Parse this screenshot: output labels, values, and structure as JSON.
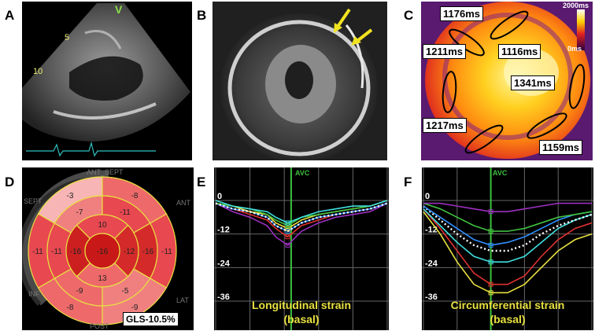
{
  "panels": {
    "a": {
      "letter": "A",
      "scale_marks": [
        "5",
        "10"
      ],
      "marker": "V"
    },
    "b": {
      "letter": "B"
    },
    "c": {
      "letter": "C",
      "colorbar_max": "2000ms",
      "colorbar_min": "0ms",
      "t1_values": [
        "1176ms",
        "1211ms",
        "1116ms",
        "1341ms",
        "1217ms",
        "1159ms"
      ]
    },
    "d": {
      "letter": "D",
      "walls": [
        "ANT_SEPT",
        "SEPT",
        "ANT",
        "INF",
        "LAT",
        "POST"
      ],
      "gls": "GLS-10.5%",
      "segments": [
        {
          "v": "-11"
        },
        {
          "v": "-9"
        },
        {
          "v": "-8"
        },
        {
          "v": "-11"
        },
        {
          "v": "-3"
        },
        {
          "v": "-8"
        },
        {
          "v": "-16"
        },
        {
          "v": "-5"
        },
        {
          "v": "-9"
        },
        {
          "v": "-11"
        },
        {
          "v": "-7"
        },
        {
          "v": "-11"
        },
        {
          "v": "-12"
        },
        {
          "v": "13"
        },
        {
          "v": "-16"
        },
        {
          "v": "10"
        },
        {
          "v": "-16"
        }
      ]
    },
    "e": {
      "letter": "E",
      "caption_1": "Longitudinal strain",
      "caption_2": "(basal)"
    },
    "f": {
      "letter": "F",
      "caption_1": "Circumferential strain",
      "caption_2": "(basal)"
    }
  },
  "strain_axis": {
    "ticks": [
      "0",
      "-12",
      "-24",
      "-36"
    ],
    "marker": "AVC"
  },
  "chart_data": [
    {
      "type": "line",
      "title": "Longitudinal strain (basal)",
      "ylim": [
        -40,
        2
      ],
      "x": [
        0,
        0.1,
        0.2,
        0.3,
        0.35,
        0.42,
        0.5,
        0.6,
        0.7,
        0.8,
        0.9,
        1
      ],
      "series": [
        {
          "color": "#9b30c0",
          "values": [
            -1,
            -4,
            -6,
            -9,
            -13,
            -16,
            -11,
            -8,
            -6,
            -5,
            -4,
            -1
          ]
        },
        {
          "color": "#e03030",
          "values": [
            -1,
            -3,
            -5,
            -7,
            -10,
            -13,
            -9,
            -7,
            -5,
            -4,
            -3,
            -1
          ]
        },
        {
          "color": "#3090ff",
          "values": [
            -1,
            -3,
            -4,
            -6,
            -9,
            -11,
            -8,
            -6,
            -5,
            -4,
            -3,
            -1
          ]
        },
        {
          "color": "#e8e040",
          "values": [
            -1,
            -2,
            -4,
            -5,
            -8,
            -10,
            -7,
            -5,
            -4,
            -3,
            -2,
            0
          ]
        },
        {
          "color": "#40c040",
          "values": [
            -1,
            -2,
            -3,
            -5,
            -7,
            -9,
            -6,
            -5,
            -4,
            -3,
            -2,
            0
          ]
        },
        {
          "color": "#40e0e0",
          "values": [
            0,
            -2,
            -3,
            -4,
            -6,
            -8,
            -6,
            -4,
            -3,
            -2,
            -2,
            0
          ]
        },
        {
          "color": "#ffffff",
          "values": [
            -1,
            -3,
            -4,
            -6,
            -9,
            -11,
            -8,
            -6,
            -5,
            -4,
            -3,
            -1
          ]
        }
      ]
    },
    {
      "type": "line",
      "title": "Circumferential strain (basal)",
      "ylim": [
        -40,
        2
      ],
      "x": [
        0,
        0.1,
        0.2,
        0.3,
        0.4,
        0.5,
        0.6,
        0.7,
        0.8,
        0.9,
        1
      ],
      "series": [
        {
          "color": "#e8e040",
          "values": [
            -4,
            -12,
            -22,
            -30,
            -33,
            -33,
            -30,
            -24,
            -18,
            -14,
            -12
          ]
        },
        {
          "color": "#e03030",
          "values": [
            -3,
            -10,
            -18,
            -26,
            -30,
            -30,
            -27,
            -20,
            -14,
            -10,
            -8
          ]
        },
        {
          "color": "#40e0e0",
          "values": [
            -3,
            -9,
            -15,
            -20,
            -22,
            -22,
            -20,
            -15,
            -10,
            -7,
            -5
          ]
        },
        {
          "color": "#ffffff",
          "values": [
            -2,
            -7,
            -12,
            -16,
            -18,
            -18,
            -16,
            -12,
            -9,
            -7,
            -5
          ]
        },
        {
          "color": "#3090ff",
          "values": [
            -2,
            -6,
            -10,
            -14,
            -16,
            -15,
            -13,
            -10,
            -7,
            -5,
            -4
          ]
        },
        {
          "color": "#40c040",
          "values": [
            -1,
            -3,
            -6,
            -9,
            -11,
            -11,
            -10,
            -8,
            -6,
            -5,
            -4
          ]
        },
        {
          "color": "#9b30c0",
          "values": [
            -1,
            -1,
            -2,
            -3,
            -4,
            -4,
            -3,
            -2,
            -1,
            -1,
            -1
          ]
        }
      ]
    }
  ]
}
